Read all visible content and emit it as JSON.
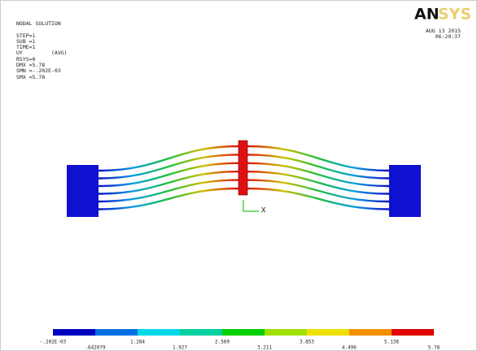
{
  "info": {
    "title": "NODAL SOLUTION",
    "step": "STEP=1",
    "sub": "SUB =1",
    "time": "TIME=1",
    "item": "UY",
    "avg": "(AVG)",
    "rsys": "RSYS=0",
    "dmx": "DMX =5.78",
    "smn": "SMN =-.202E-03",
    "smx": "SMX =5.78"
  },
  "logo": {
    "an": "AN",
    "sys": "SYS"
  },
  "date": "AUG 13 2015",
  "clock": "06:20:37",
  "triad": {
    "x": "X"
  },
  "legend": {
    "labels": [
      "-.202E-03",
      ".642079",
      "1.284",
      "1.927",
      "2.569",
      "3.211",
      "3.853",
      "4.496",
      "5.138",
      "5.78"
    ]
  }
}
